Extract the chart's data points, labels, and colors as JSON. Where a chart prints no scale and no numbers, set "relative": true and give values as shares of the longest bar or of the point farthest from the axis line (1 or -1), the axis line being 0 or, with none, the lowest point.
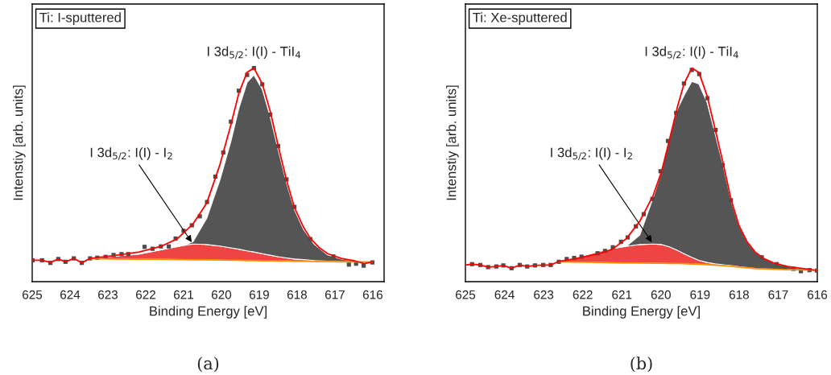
{
  "chart_data": [
    {
      "type": "line",
      "relative": true,
      "xlabel": "Binding Energy [eV]",
      "ylabel": "Intenstiy [arb. units]",
      "xlim": [
        625,
        615.7
      ],
      "xticks": [
        625,
        624,
        623,
        622,
        621,
        620,
        619,
        618,
        617,
        616
      ],
      "annotations": [
        "Ti: I-sputtered",
        "(a)",
        "I 3d$_{5/2}$: I(I) - TiI$_{4}$",
        "I 3d$_{5/2}$: I(I) - I$_{2}$"
      ],
      "series": [
        {
          "type": "line",
          "color": "#ff8c00",
          "x": [
            623.47,
            622.88,
            622.17,
            621.46,
            621.03,
            620.75,
            620.39,
            620.04,
            619.75,
            619.54,
            619.32,
            619.14,
            618.92,
            618.71,
            618.5,
            618.28,
            618.07,
            617.83,
            617.54,
            617.19,
            616.83,
            616.47,
            616.01
          ],
          "values": [
            0.108,
            0.106,
            0.105,
            0.104,
            0.103,
            0.102,
            0.102,
            0.101,
            0.1,
            0.1,
            0.099,
            0.099,
            0.098,
            0.098,
            0.097,
            0.097,
            0.096,
            0.096,
            0.095,
            0.094,
            0.093,
            0.093,
            0.092
          ]
        },
        {
          "type": "area",
          "color": "#ee4444",
          "x": [
            623.47,
            622.88,
            622.17,
            621.46,
            621.03,
            620.75,
            620.39,
            620.04,
            619.75,
            619.54,
            619.32,
            619.14,
            618.92,
            618.71,
            618.5,
            618.28,
            618.07,
            617.83,
            617.54,
            617.19,
            616.83,
            616.47,
            616.01
          ],
          "values": [
            0.11,
            0.118,
            0.129,
            0.154,
            0.169,
            0.176,
            0.174,
            0.167,
            0.158,
            0.152,
            0.144,
            0.139,
            0.131,
            0.124,
            0.117,
            0.111,
            0.106,
            0.103,
            0.099,
            0.096,
            0.094,
            0.093,
            0.092
          ]
        },
        {
          "type": "area",
          "color": "#555555",
          "x": [
            623.47,
            622.88,
            622.17,
            621.46,
            621.03,
            620.75,
            620.39,
            620.04,
            619.75,
            619.54,
            619.32,
            619.14,
            618.92,
            618.71,
            618.5,
            618.28,
            618.07,
            617.83,
            617.54,
            617.19,
            616.83,
            616.47,
            616.01
          ],
          "values": [
            0.11,
            0.118,
            0.129,
            0.154,
            0.169,
            0.187,
            0.296,
            0.475,
            0.656,
            0.811,
            0.933,
            0.968,
            0.901,
            0.772,
            0.618,
            0.463,
            0.337,
            0.245,
            0.174,
            0.125,
            0.106,
            0.097,
            0.092
          ]
        },
        {
          "color": "#ff0000",
          "x": [
            625,
            624.74,
            624.52,
            624.31,
            624.12,
            623.9,
            623.69,
            623.47,
            622.88,
            622.17,
            621.6,
            621.17,
            620.75,
            620.39,
            620.04,
            619.75,
            619.54,
            619.32,
            619.14,
            618.92,
            618.71,
            618.5,
            618.28,
            618.07,
            617.83,
            617.65,
            617.4,
            617.19,
            616.83,
            616.47,
            616.22,
            616.01
          ],
          "values": [
            0.1,
            0.1,
            0.09,
            0.106,
            0.093,
            0.109,
            0.088,
            0.109,
            0.121,
            0.139,
            0.165,
            0.2,
            0.27,
            0.367,
            0.547,
            0.734,
            0.882,
            0.981,
            1.0,
            0.927,
            0.798,
            0.637,
            0.476,
            0.347,
            0.255,
            0.203,
            0.157,
            0.131,
            0.109,
            0.097,
            0.084,
            0.093
          ]
        },
        {
          "type": "scatter",
          "color": "#4d4d4d",
          "marker": "square",
          "x": [
            624.99,
            624.74,
            624.52,
            624.31,
            624.12,
            623.9,
            623.69,
            623.47,
            623.28,
            623.06,
            622.85,
            622.64,
            622.46,
            622.03,
            621.82,
            621.6,
            621.39,
            621.21,
            621.0,
            620.78,
            620.57,
            620.38,
            620.16,
            619.95,
            619.75,
            619.54,
            619.32,
            619.14,
            618.92,
            618.71,
            618.5,
            618.28,
            618.07,
            617.65,
            617.04,
            616.63,
            616.44,
            616.24,
            616.01
          ],
          "values": [
            0.1,
            0.1,
            0.088,
            0.106,
            0.093,
            0.109,
            0.088,
            0.109,
            0.112,
            0.116,
            0.125,
            0.129,
            0.129,
            0.163,
            0.154,
            0.165,
            0.165,
            0.202,
            0.238,
            0.264,
            0.306,
            0.373,
            0.492,
            0.605,
            0.749,
            0.894,
            0.968,
            1.0,
            0.924,
            0.782,
            0.635,
            0.479,
            0.35,
            0.199,
            0.118,
            0.08,
            0.084,
            0.075,
            0.09
          ]
        }
      ]
    },
    {
      "type": "line",
      "relative": true,
      "xlabel": "Binding Energy [eV]",
      "ylabel": "Intenstiy [arb. units]",
      "xlim": [
        625,
        616
      ],
      "xticks": [
        625,
        624,
        623,
        622,
        621,
        620,
        619,
        618,
        617,
        616
      ],
      "annotations": [
        "Ti: Xe-sputtered",
        "(b)",
        "I 3d$_{5/2}$: I(I) - TiI$_{4}$",
        "I 3d$_{5/2}$: I(I) - I$_{2}$"
      ],
      "series": [
        {
          "type": "line",
          "color": "#ff8c00",
          "x": [
            622.61,
            622.25,
            621.91,
            621.57,
            621.23,
            620.88,
            620.54,
            620.2,
            619.99,
            619.78,
            619.58,
            619.41,
            619.21,
            619.03,
            618.82,
            618.62,
            618.41,
            618.21,
            618.0,
            617.79,
            617.59,
            617.38,
            617.11,
            616.76,
            616.42,
            616.01
          ],
          "values": [
            0.093,
            0.092,
            0.091,
            0.09,
            0.088,
            0.087,
            0.087,
            0.086,
            0.086,
            0.085,
            0.085,
            0.084,
            0.083,
            0.082,
            0.08,
            0.078,
            0.075,
            0.072,
            0.068,
            0.065,
            0.062,
            0.06,
            0.058,
            0.056,
            0.055,
            0.054
          ]
        },
        {
          "type": "area",
          "color": "#ee4444",
          "x": [
            622.61,
            622.25,
            621.91,
            621.57,
            621.23,
            620.88,
            620.54,
            620.2,
            619.99,
            619.78,
            619.58,
            619.41,
            619.21,
            619.03,
            618.82,
            618.62,
            618.41,
            618.21,
            618.0,
            617.79,
            617.59,
            617.38,
            617.11,
            616.76,
            616.42,
            616.01
          ],
          "values": [
            0.095,
            0.109,
            0.125,
            0.142,
            0.155,
            0.166,
            0.174,
            0.176,
            0.174,
            0.163,
            0.147,
            0.131,
            0.114,
            0.1,
            0.09,
            0.084,
            0.079,
            0.075,
            0.07,
            0.066,
            0.062,
            0.06,
            0.058,
            0.056,
            0.055,
            0.054
          ]
        },
        {
          "type": "area",
          "color": "#555555",
          "x": [
            622.61,
            622.25,
            621.91,
            621.57,
            621.23,
            620.88,
            620.54,
            620.2,
            619.99,
            619.78,
            619.58,
            619.41,
            619.21,
            619.03,
            618.82,
            618.62,
            618.41,
            618.21,
            618.0,
            617.79,
            617.59,
            617.38,
            617.11,
            616.76,
            616.42,
            616.01
          ],
          "values": [
            0.095,
            0.109,
            0.125,
            0.142,
            0.155,
            0.166,
            0.218,
            0.392,
            0.512,
            0.686,
            0.806,
            0.871,
            0.937,
            0.926,
            0.839,
            0.697,
            0.545,
            0.381,
            0.261,
            0.185,
            0.139,
            0.109,
            0.087,
            0.071,
            0.061,
            0.054
          ]
        },
        {
          "color": "#ff0000",
          "x": [
            625,
            624.83,
            624.62,
            624.42,
            624.21,
            624.03,
            623.82,
            623.61,
            623.42,
            623.22,
            623.01,
            622.82,
            622.61,
            622.25,
            621.91,
            621.57,
            621.23,
            620.88,
            620.54,
            620.2,
            619.99,
            619.78,
            619.58,
            619.41,
            619.21,
            619.03,
            618.82,
            618.62,
            618.41,
            618.21,
            618.0,
            617.79,
            617.59,
            617.38,
            617.11,
            616.76,
            616.42,
            616.01
          ],
          "values": [
            0.078,
            0.082,
            0.078,
            0.068,
            0.071,
            0.076,
            0.063,
            0.078,
            0.071,
            0.076,
            0.078,
            0.078,
            0.095,
            0.106,
            0.118,
            0.131,
            0.153,
            0.202,
            0.283,
            0.403,
            0.512,
            0.664,
            0.817,
            0.926,
            1.0,
            0.98,
            0.871,
            0.719,
            0.556,
            0.387,
            0.261,
            0.185,
            0.139,
            0.109,
            0.087,
            0.071,
            0.063,
            0.052
          ]
        },
        {
          "type": "scatter",
          "color": "#4d4d4d",
          "marker": "square",
          "x": [
            624.83,
            624.62,
            624.42,
            624.21,
            624.03,
            623.82,
            623.61,
            623.42,
            623.22,
            623.01,
            622.82,
            622.61,
            622.41,
            622.22,
            622.03,
            621.62,
            621.43,
            621.23,
            621.02,
            620.85,
            620.64,
            620.44,
            620.22,
            620.01,
            619.82,
            619.61,
            619.41,
            619.21,
            619.02,
            618.81,
            618.6,
            618.42,
            618.21,
            617.42,
            617.04,
            616.83,
            616.61,
            616.42,
            616.2,
            616.01
          ],
          "values": [
            0.082,
            0.078,
            0.068,
            0.071,
            0.076,
            0.063,
            0.078,
            0.071,
            0.076,
            0.078,
            0.078,
            0.093,
            0.106,
            0.111,
            0.117,
            0.133,
            0.144,
            0.161,
            0.187,
            0.207,
            0.259,
            0.316,
            0.387,
            0.517,
            0.659,
            0.79,
            0.928,
            0.991,
            0.972,
            0.859,
            0.71,
            0.545,
            0.381,
            0.114,
            0.082,
            0.065,
            0.06,
            0.049,
            0.054,
            0.052
          ]
        }
      ]
    }
  ]
}
